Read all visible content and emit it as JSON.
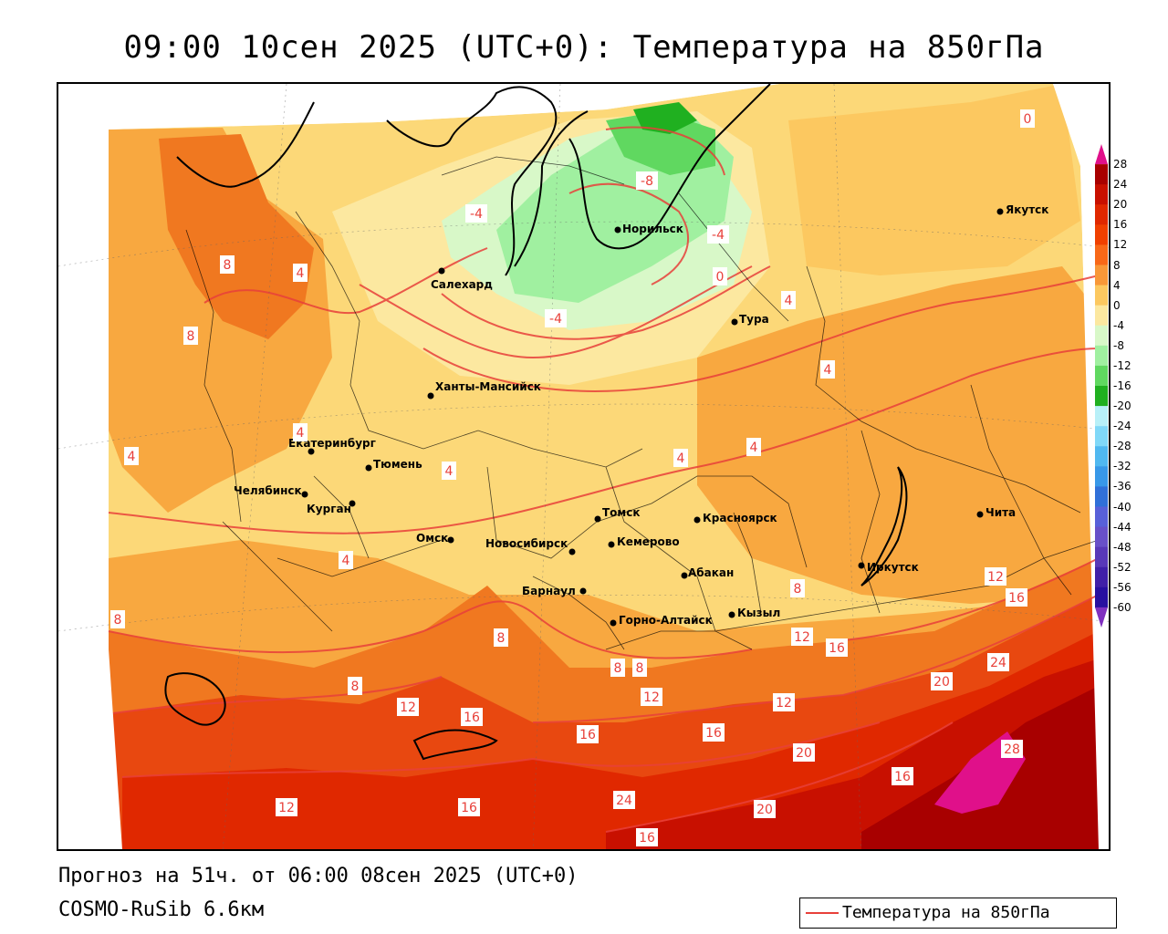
{
  "title": "09:00 10сен 2025 (UTC+0): Температура на 850гПа",
  "footer": {
    "forecast": "Прогноз на 51ч. от 06:00 08сен 2025 (UTC+0)",
    "model": "COSMO-RuSib 6.6км"
  },
  "legend": {
    "label": "Температура на 850гПа",
    "line_color": "#e8403a"
  },
  "colorbar": {
    "ticks": [
      "28",
      "24",
      "20",
      "16",
      "12",
      "8",
      "4",
      "0",
      "-4",
      "-8",
      "-12",
      "-16",
      "-20",
      "-24",
      "-28",
      "-32",
      "-36",
      "-40",
      "-44",
      "-48",
      "-52",
      "-56",
      "-60"
    ],
    "colors": [
      "#e0108a",
      "#a80000",
      "#c81000",
      "#e02800",
      "#f04000",
      "#f86818",
      "#f89838",
      "#fcc860",
      "#fce8a0",
      "#d8f8c8",
      "#a0f0a0",
      "#60d860",
      "#20b020",
      "#b8f0f8",
      "#80d8f8",
      "#50b8f0",
      "#3898e8",
      "#3070d8",
      "#5860d8",
      "#6850c8",
      "#5838b8",
      "#4020a8",
      "#2810a0",
      "#8030c0"
    ]
  },
  "cities": [
    {
      "name": "Якутск"
    },
    {
      "name": "Норильск"
    },
    {
      "name": "Салехард"
    },
    {
      "name": "Тура"
    },
    {
      "name": "Ханты-Мансийск"
    },
    {
      "name": "Екатеринбург"
    },
    {
      "name": "Тюмень"
    },
    {
      "name": "Челябинск"
    },
    {
      "name": "Курган"
    },
    {
      "name": "Омск"
    },
    {
      "name": "Новосибирск"
    },
    {
      "name": "Томск"
    },
    {
      "name": "Кемерово"
    },
    {
      "name": "Красноярск"
    },
    {
      "name": "Барнаул"
    },
    {
      "name": "Абакан"
    },
    {
      "name": "Горно-Алтайск"
    },
    {
      "name": "Кызыл"
    },
    {
      "name": "Иркутск"
    },
    {
      "name": "Чита"
    }
  ],
  "isotherm_labels": [
    "0",
    "-8",
    "-4",
    "-4",
    "-4",
    "0",
    "8",
    "4",
    "8",
    "4",
    "4",
    "4",
    "4",
    "4",
    "4",
    "4",
    "4",
    "8",
    "8",
    "8",
    "8",
    "12",
    "16",
    "8",
    "8",
    "12",
    "12",
    "16",
    "16",
    "24",
    "20",
    "12",
    "16",
    "20",
    "28",
    "12",
    "16",
    "12",
    "16",
    "24",
    "16",
    "20",
    "16"
  ]
}
